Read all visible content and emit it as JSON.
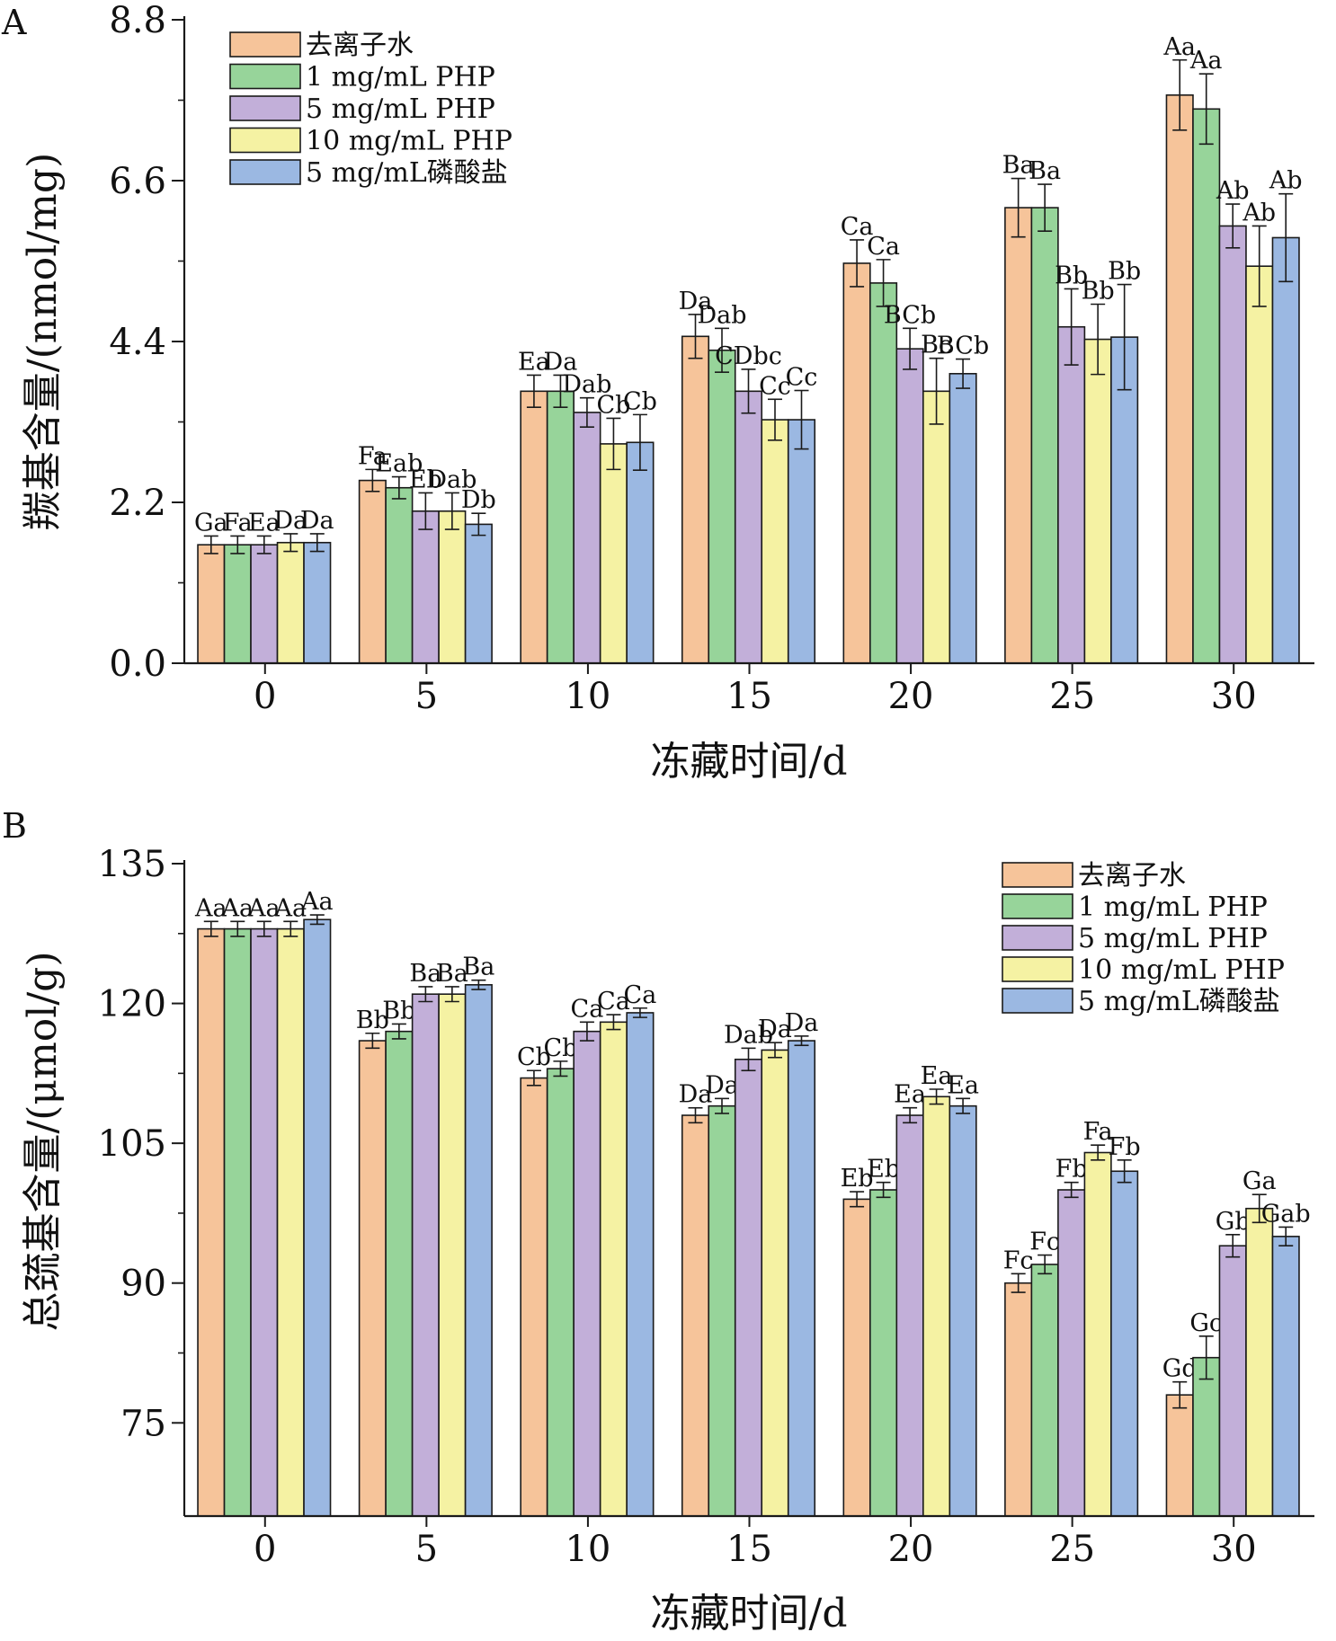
{
  "colors": {
    "series": [
      "#F6C49A",
      "#97D49A",
      "#C2AFD9",
      "#F5F2A3",
      "#9BB8E2"
    ],
    "stroke": "#1a1a1a"
  },
  "chart_data": [
    {
      "type": "bar",
      "panel_label": "A",
      "categories": [
        "0",
        "5",
        "10",
        "15",
        "20",
        "25",
        "30"
      ],
      "xlabel": "冻藏时间/d",
      "ylabel": "羰基含量/(nmol/mg)",
      "ylim": [
        0,
        8.8
      ],
      "yticks": [
        "0.0",
        "2.2",
        "4.4",
        "6.6",
        "8.8"
      ],
      "legend_position": "top-left",
      "series": [
        {
          "name": "去离子水",
          "values": [
            1.62,
            2.5,
            3.72,
            4.47,
            5.47,
            6.23,
            7.77
          ],
          "errors": [
            0.12,
            0.15,
            0.22,
            0.3,
            0.32,
            0.4,
            0.48
          ]
        },
        {
          "name": "1 mg/mL PHP",
          "values": [
            1.62,
            2.4,
            3.72,
            4.28,
            5.2,
            6.23,
            7.58
          ],
          "errors": [
            0.12,
            0.15,
            0.22,
            0.3,
            0.32,
            0.32,
            0.48
          ]
        },
        {
          "name": "5 mg/mL PHP",
          "values": [
            1.62,
            2.08,
            3.43,
            3.72,
            4.3,
            4.6,
            5.98
          ],
          "errors": [
            0.12,
            0.25,
            0.2,
            0.3,
            0.28,
            0.52,
            0.3
          ]
        },
        {
          "name": "10 mg/mL PHP",
          "values": [
            1.65,
            2.08,
            3.0,
            3.33,
            3.72,
            4.43,
            5.43
          ],
          "errors": [
            0.12,
            0.25,
            0.35,
            0.28,
            0.45,
            0.48,
            0.55
          ]
        },
        {
          "name": "5 mg/mL磷酸盐",
          "values": [
            1.65,
            1.9,
            3.02,
            3.33,
            3.96,
            4.46,
            5.82
          ],
          "errors": [
            0.12,
            0.15,
            0.38,
            0.4,
            0.2,
            0.72,
            0.6
          ]
        }
      ],
      "annotations": [
        [
          "Ga",
          "Fa",
          "Ea",
          "Da",
          "Da"
        ],
        [
          "Fa",
          "Eab",
          "Eb",
          "Dab",
          "Db"
        ],
        [
          "Ea",
          "Da",
          "Dab",
          "Cb",
          "Cb"
        ],
        [
          "Da",
          "Dab",
          "CDbc",
          "Cc",
          "Cc"
        ],
        [
          "Ca",
          "Ca",
          "BCb",
          "Bc",
          "BCb"
        ],
        [
          "Ba",
          "Ba",
          "Bb",
          "Bb",
          "Bb"
        ],
        [
          "Aa",
          "Aa",
          "Ab",
          "Ab",
          "Ab"
        ]
      ]
    },
    {
      "type": "bar",
      "panel_label": "B",
      "categories": [
        "0",
        "5",
        "10",
        "15",
        "20",
        "25",
        "30"
      ],
      "xlabel": "冻藏时间/d",
      "ylabel": "总巯基含量/(μmol/g)",
      "ylim": [
        65,
        135
      ],
      "yticks": [
        "75",
        "90",
        "105",
        "120",
        "135"
      ],
      "legend_position": "top-right",
      "series": [
        {
          "name": "去离子水",
          "values": [
            128,
            116,
            112,
            108,
            99,
            90,
            78
          ],
          "errors": [
            0.8,
            0.8,
            0.8,
            0.8,
            0.8,
            1.0,
            1.4
          ]
        },
        {
          "name": "1 mg/mL PHP",
          "values": [
            128,
            117,
            113,
            109,
            100,
            92,
            82
          ],
          "errors": [
            0.8,
            0.8,
            0.8,
            0.8,
            0.8,
            1.0,
            2.3
          ]
        },
        {
          "name": "5 mg/mL PHP",
          "values": [
            128,
            121,
            117,
            114,
            108,
            100,
            94
          ],
          "errors": [
            0.8,
            0.8,
            1.0,
            1.2,
            0.8,
            0.8,
            1.2
          ]
        },
        {
          "name": "10 mg/mL PHP",
          "values": [
            128,
            121,
            118,
            115,
            110,
            104,
            98
          ],
          "errors": [
            0.8,
            0.8,
            0.8,
            0.8,
            0.8,
            0.8,
            1.5
          ]
        },
        {
          "name": "5 mg/mL磷酸盐",
          "values": [
            129,
            122,
            119,
            116,
            109,
            102,
            95
          ],
          "errors": [
            0.5,
            0.5,
            0.5,
            0.5,
            0.8,
            1.2,
            1.0
          ]
        }
      ],
      "annotations": [
        [
          "Aa",
          "Aa",
          "Aa",
          "Aa",
          "Aa"
        ],
        [
          "Bb",
          "Bb",
          "Ba",
          "Ba",
          "Ba"
        ],
        [
          "Cb",
          "Cb",
          "Ca",
          "Ca",
          "Ca"
        ],
        [
          "Da",
          "Da",
          "Dab",
          "Da",
          "Da"
        ],
        [
          "Eb",
          "Eb",
          "Ea",
          "Ea",
          "Ea"
        ],
        [
          "Fc",
          "Fc",
          "Fb",
          "Fa",
          "Fb"
        ],
        [
          "Gd",
          "Gc",
          "Gb",
          "Ga",
          "Gab"
        ]
      ]
    }
  ]
}
